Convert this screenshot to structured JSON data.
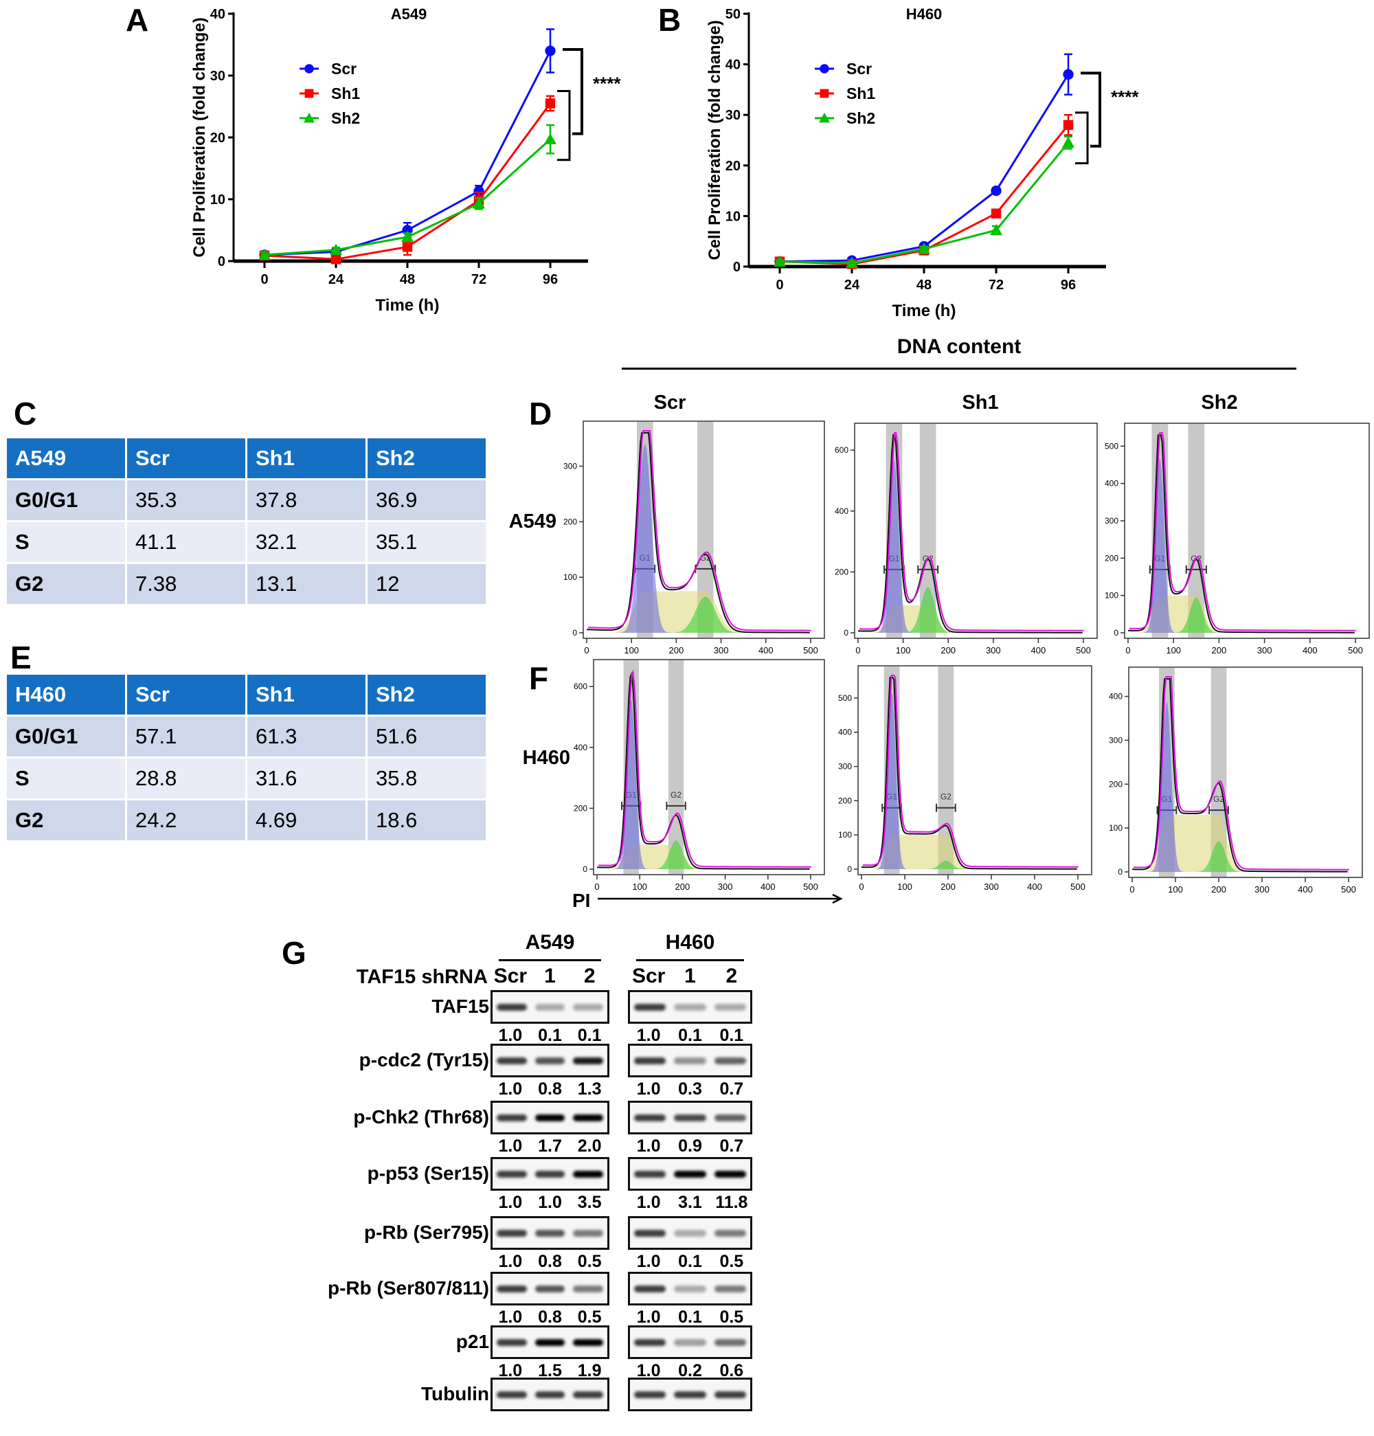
{
  "panel_labels": {
    "a": "A",
    "b": "B",
    "c": "C",
    "d": "D",
    "e": "E",
    "f": "F",
    "g": "G"
  },
  "chart_data": [
    {
      "type": "line",
      "panel": "A",
      "title": "A549",
      "xlabel": "Time  (h)",
      "ylabel": "Cell Proliferation (fold change)",
      "x": [
        0,
        24,
        48,
        72,
        96
      ],
      "xticks": [
        "0",
        "24",
        "48",
        "72",
        "96"
      ],
      "ylim": [
        0,
        40
      ],
      "yticks": [
        "0",
        "10",
        "20",
        "30",
        "40"
      ],
      "legend": "upper-left",
      "series": [
        {
          "name": "Scr",
          "color": "#0a0aff",
          "marker": "circle",
          "values": [
            1.0,
            1.5,
            5.0,
            11.3,
            34.0
          ],
          "err": [
            0.5,
            0.6,
            1.2,
            0.9,
            3.5
          ]
        },
        {
          "name": "Sh1",
          "color": "#ff0000",
          "marker": "square",
          "values": [
            0.9,
            0.3,
            2.3,
            9.8,
            25.5
          ],
          "err": [
            0.5,
            0.3,
            1.3,
            1.3,
            1.2
          ]
        },
        {
          "name": "Sh2",
          "color": "#00c000",
          "marker": "triangle",
          "values": [
            1.0,
            1.8,
            3.9,
            9.3,
            19.7
          ],
          "err": [
            0.4,
            0.4,
            0.6,
            0.9,
            2.3
          ]
        }
      ],
      "significance": "****"
    },
    {
      "type": "line",
      "panel": "B",
      "title": "H460",
      "xlabel": "Time  (h)",
      "ylabel": "Cell Proliferation (fold change)",
      "x": [
        0,
        24,
        48,
        72,
        96
      ],
      "xticks": [
        "0",
        "24",
        "48",
        "72",
        "96"
      ],
      "ylim": [
        0,
        50
      ],
      "yticks": [
        "0",
        "10",
        "20",
        "30",
        "40",
        "50"
      ],
      "legend": "upper-left",
      "series": [
        {
          "name": "Scr",
          "color": "#0a0aff",
          "marker": "circle",
          "values": [
            1.0,
            1.2,
            4.0,
            15.0,
            38.0
          ],
          "err": [
            0.3,
            0.3,
            0.4,
            0.5,
            4.0
          ]
        },
        {
          "name": "Sh1",
          "color": "#ff0000",
          "marker": "square",
          "values": [
            1.0,
            0.5,
            3.2,
            10.5,
            28.0
          ],
          "err": [
            0.3,
            0.3,
            0.4,
            0.6,
            2.0
          ]
        },
        {
          "name": "Sh2",
          "color": "#00c000",
          "marker": "triangle",
          "values": [
            1.0,
            0.7,
            3.5,
            7.2,
            24.5
          ],
          "err": [
            0.3,
            0.3,
            0.4,
            0.8,
            1.2
          ]
        }
      ],
      "significance": "****"
    }
  ],
  "dna": {
    "header": "DNA content",
    "columns": [
      "Scr",
      "Sh1",
      "Sh2"
    ],
    "rows": [
      "A549",
      "H460"
    ],
    "x_axis_label": "PI",
    "xticks": [
      "0",
      "100",
      "200",
      "300",
      "400",
      "500"
    ],
    "gate_labels": [
      "G1",
      "G2"
    ],
    "histograms": [
      {
        "cell": "A549",
        "sample": "Scr",
        "yticks": [
          "0",
          "100",
          "200",
          "300"
        ],
        "ymax": 360,
        "g1": 130,
        "g1_height": 340,
        "g2": 265,
        "s_level": 75,
        "g2_height": 65
      },
      {
        "cell": "A549",
        "sample": "Sh1",
        "yticks": [
          "0",
          "200",
          "400",
          "600"
        ],
        "ymax": 650,
        "g1": 80,
        "g1_height": 570,
        "g2": 155,
        "s_level": 90,
        "g2_height": 150
      },
      {
        "cell": "A549",
        "sample": "Sh2",
        "yticks": [
          "0",
          "100",
          "200",
          "300",
          "400",
          "500"
        ],
        "ymax": 530,
        "g1": 70,
        "g1_height": 470,
        "g2": 150,
        "s_level": 100,
        "g2_height": 95
      },
      {
        "cell": "H460",
        "sample": "Scr",
        "yticks": [
          "0",
          "200",
          "400",
          "600"
        ],
        "ymax": 650,
        "g1": 80,
        "g1_height": 560,
        "g2": 185,
        "s_level": 80,
        "g2_height": 95
      },
      {
        "cell": "H460",
        "sample": "Sh1",
        "yticks": [
          "0",
          "100",
          "200",
          "300",
          "400",
          "500"
        ],
        "ymax": 560,
        "g1": 70,
        "g1_height": 520,
        "g2": 195,
        "s_level": 100,
        "g2_height": 25
      },
      {
        "cell": "H460",
        "sample": "Sh2",
        "yticks": [
          "0",
          "100",
          "200",
          "300",
          "400"
        ],
        "ymax": 440,
        "g1": 80,
        "g1_height": 390,
        "g2": 200,
        "s_level": 130,
        "g2_height": 70
      }
    ]
  },
  "tables": {
    "c": {
      "header": [
        "A549",
        "Scr",
        "Sh1",
        "Sh2"
      ],
      "rows": [
        [
          "G0/G1",
          "35.3",
          "37.8",
          "36.9"
        ],
        [
          "S",
          "41.1",
          "32.1",
          "35.1"
        ],
        [
          "G2",
          "7.38",
          "13.1",
          "12"
        ]
      ]
    },
    "e": {
      "header": [
        "H460",
        "Scr",
        "Sh1",
        "Sh2"
      ],
      "rows": [
        [
          "G0/G1",
          "57.1",
          "61.3",
          "51.6"
        ],
        [
          "S",
          "28.8",
          "31.6",
          "35.8"
        ],
        [
          "G2",
          "24.2",
          "4.69",
          "18.6"
        ]
      ]
    }
  },
  "western": {
    "groups": [
      "A549",
      "H460"
    ],
    "shrna_label": "TAF15 shRNA",
    "lanes": [
      "Scr",
      "1",
      "2"
    ],
    "blots": [
      {
        "label": "TAF15",
        "a549": [
          "1.0",
          "0.1",
          "0.1"
        ],
        "h460": [
          "1.0",
          "0.1",
          "0.1"
        ]
      },
      {
        "label": "p-cdc2 (Tyr15)",
        "a549": [
          "1.0",
          "0.8",
          "1.3"
        ],
        "h460": [
          "1.0",
          "0.3",
          "0.7"
        ]
      },
      {
        "label": "p-Chk2 (Thr68)",
        "a549": [
          "1.0",
          "1.7",
          "2.0"
        ],
        "h460": [
          "1.0",
          "0.9",
          "0.7"
        ]
      },
      {
        "label": "p-p53 (Ser15)",
        "a549": [
          "1.0",
          "1.0",
          "3.5"
        ],
        "h460": [
          "1.0",
          "3.1",
          "11.8"
        ]
      },
      {
        "label": "p-Rb (Ser795)",
        "a549": [
          "1.0",
          "0.8",
          "0.5"
        ],
        "h460": [
          "1.0",
          "0.1",
          "0.5"
        ]
      },
      {
        "label": "p-Rb (Ser807/811)",
        "a549": [
          "1.0",
          "0.8",
          "0.5"
        ],
        "h460": [
          "1.0",
          "0.1",
          "0.5"
        ]
      },
      {
        "label": "p21",
        "a549": [
          "1.0",
          "1.5",
          "1.9"
        ],
        "h460": [
          "1.0",
          "0.2",
          "0.6"
        ]
      },
      {
        "label": "Tubulin",
        "a549": null,
        "h460": null
      }
    ]
  }
}
